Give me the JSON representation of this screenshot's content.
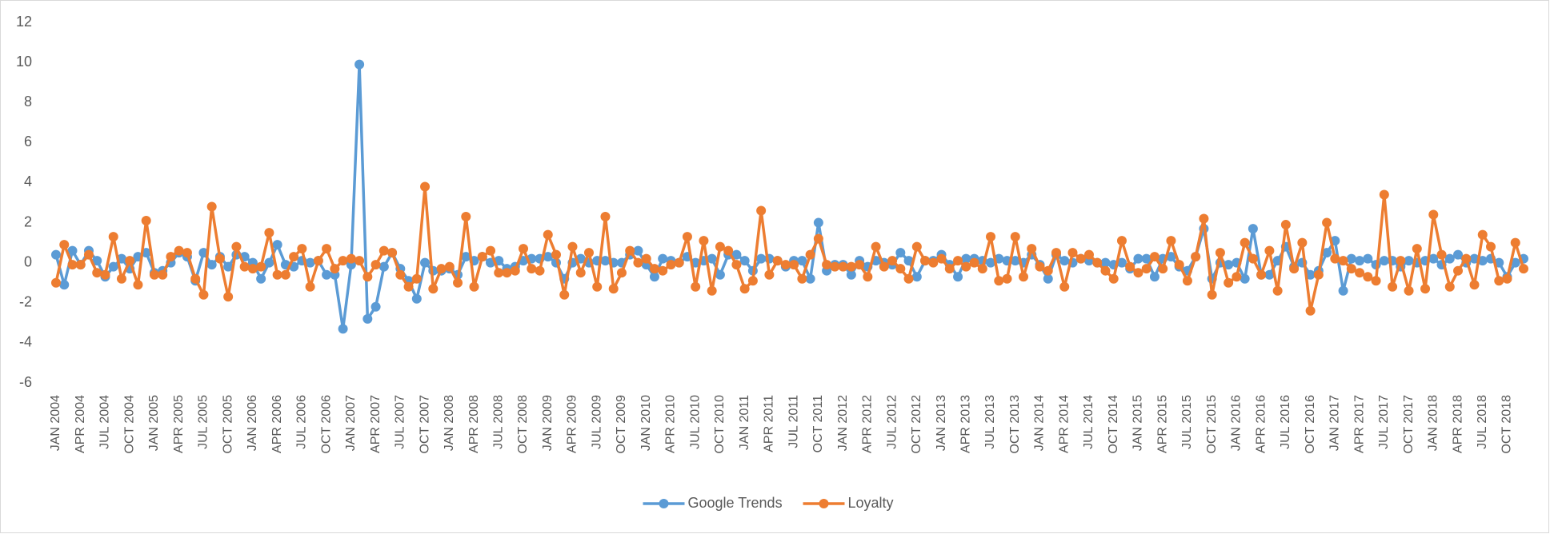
{
  "chart_data": {
    "type": "line",
    "categories": [
      "JAN 2004",
      null,
      null,
      "APR 2004",
      null,
      null,
      "JUL 2004",
      null,
      null,
      "OCT 2004",
      null,
      null,
      "JAN 2005",
      null,
      null,
      "APR 2005",
      null,
      null,
      "JUL 2005",
      null,
      null,
      "OCT 2005",
      null,
      null,
      "JAN 2006",
      null,
      null,
      "APR 2006",
      null,
      null,
      "JUL 2006",
      null,
      null,
      "OCT 2006",
      null,
      null,
      "JAN 2007",
      null,
      null,
      "APR 2007",
      null,
      null,
      "JUL 2007",
      null,
      null,
      "OCT 2007",
      null,
      null,
      "JAN 2008",
      null,
      null,
      "APR 2008",
      null,
      null,
      "JUL 2008",
      null,
      null,
      "OCT 2008",
      null,
      null,
      "JAN 2009",
      null,
      null,
      "APR 2009",
      null,
      null,
      "JUL 2009",
      null,
      null,
      "OCT 2009",
      null,
      null,
      "JAN 2010",
      null,
      null,
      "APR 2010",
      null,
      null,
      "JUL 2010",
      null,
      null,
      "OCT 2010",
      null,
      null,
      "JAN 2011",
      null,
      null,
      "APR 2011",
      null,
      null,
      "JUL 2011",
      null,
      null,
      "OCT 2011",
      null,
      null,
      "JAN 2012",
      null,
      null,
      "APR 2012",
      null,
      null,
      "JUL 2012",
      null,
      null,
      "OCT 2012",
      null,
      null,
      "JAN 2013",
      null,
      null,
      "APR 2013",
      null,
      null,
      "JUL 2013",
      null,
      null,
      "OCT 2013",
      null,
      null,
      "JAN 2014",
      null,
      null,
      "APR 2014",
      null,
      null,
      "JUL 2014",
      null,
      null,
      "OCT 2014",
      null,
      null,
      "JAN 2015",
      null,
      null,
      "APR 2015",
      null,
      null,
      "JUL 2015",
      null,
      null,
      "OCT 2015",
      null,
      null,
      "JAN 2016",
      null,
      null,
      "APR 2016",
      null,
      null,
      "JUL 2016",
      null,
      null,
      "OCT 2016",
      null,
      null,
      "JAN 2017",
      null,
      null,
      "APR 2017",
      null,
      null,
      "JUL 2017",
      null,
      null,
      "OCT 2017",
      null,
      null,
      "JAN 2018",
      null,
      null,
      "APR 2018",
      null,
      null,
      "JUL 2018",
      null,
      null,
      "OCT 2018",
      null,
      null
    ],
    "series": [
      {
        "name": "Google Trends",
        "color": "#5b9bd5",
        "values": [
          0.4,
          -1.1,
          0.6,
          -0.1,
          0.6,
          0.1,
          -0.7,
          -0.2,
          0.2,
          -0.3,
          0.3,
          0.5,
          -0.5,
          -0.4,
          0.0,
          0.5,
          0.3,
          -0.9,
          0.5,
          -0.1,
          0.3,
          -0.2,
          0.4,
          0.3,
          0.0,
          -0.8,
          0.0,
          0.9,
          -0.1,
          -0.2,
          0.1,
          0.0,
          0.1,
          -0.6,
          -0.6,
          -3.3,
          -0.1,
          9.9,
          -2.8,
          -2.2,
          -0.2,
          0.5,
          -0.3,
          -0.9,
          -1.8,
          0.0,
          -0.4,
          -0.4,
          -0.3,
          -0.6,
          0.3,
          0.1,
          0.3,
          0.0,
          0.1,
          -0.3,
          -0.2,
          0.1,
          0.2,
          0.2,
          0.3,
          0.0,
          -0.8,
          0.0,
          0.2,
          0.0,
          0.1,
          0.1,
          0.0,
          0.0,
          0.4,
          0.6,
          -0.1,
          -0.7,
          0.2,
          0.1,
          0.0,
          0.3,
          0.0,
          0.1,
          0.2,
          -0.6,
          0.4,
          0.4,
          0.1,
          -0.4,
          0.2,
          0.2,
          0.1,
          -0.2,
          0.1,
          0.1,
          -0.8,
          2.0,
          -0.4,
          -0.1,
          -0.1,
          -0.6,
          0.1,
          -0.2,
          0.1,
          0.0,
          -0.1,
          0.5,
          0.1,
          -0.7,
          0.1,
          0.1,
          0.4,
          -0.1,
          -0.7,
          0.2,
          0.2,
          0.1,
          0.0,
          0.2,
          0.1,
          0.1,
          0.0,
          0.4,
          -0.1,
          -0.8,
          0.4,
          0.1,
          0.0,
          0.2,
          0.1,
          0.0,
          0.0,
          -0.1,
          0.0,
          -0.3,
          0.2,
          0.2,
          -0.7,
          0.2,
          0.3,
          -0.2,
          -0.4,
          0.3,
          1.7,
          -0.8,
          0.0,
          -0.1,
          0.0,
          -0.8,
          1.7,
          -0.6,
          -0.6,
          0.1,
          0.8,
          -0.2,
          0.0,
          -0.6,
          -0.4,
          0.5,
          1.1,
          -1.4,
          0.2,
          0.1,
          0.2,
          -0.1,
          0.1,
          0.1,
          -0.2,
          0.1,
          0.0,
          0.1,
          0.2,
          -0.1,
          0.2,
          0.4,
          0.0,
          0.2,
          0.1,
          0.2,
          0.0,
          -0.7,
          0.0,
          0.2
        ]
      },
      {
        "name": "Loyalty",
        "color": "#ed7d31",
        "values": [
          -1.0,
          0.9,
          -0.1,
          -0.1,
          0.4,
          -0.5,
          -0.6,
          1.3,
          -0.8,
          0.1,
          -1.1,
          2.1,
          -0.6,
          -0.6,
          0.3,
          0.6,
          0.5,
          -0.8,
          -1.6,
          2.8,
          0.2,
          -1.7,
          0.8,
          -0.2,
          -0.3,
          -0.2,
          1.5,
          -0.6,
          -0.6,
          0.3,
          0.7,
          -1.2,
          0.1,
          0.7,
          -0.3,
          0.1,
          0.2,
          0.1,
          -0.7,
          -0.1,
          0.6,
          0.5,
          -0.6,
          -1.2,
          -0.8,
          3.8,
          -1.3,
          -0.3,
          -0.2,
          -1.0,
          2.3,
          -1.2,
          0.3,
          0.6,
          -0.5,
          -0.5,
          -0.4,
          0.7,
          -0.3,
          -0.4,
          1.4,
          0.4,
          -1.6,
          0.8,
          -0.5,
          0.5,
          -1.2,
          2.3,
          -1.3,
          -0.5,
          0.6,
          0.0,
          0.2,
          -0.3,
          -0.4,
          -0.1,
          0.0,
          1.3,
          -1.2,
          1.1,
          -1.4,
          0.8,
          0.6,
          -0.1,
          -1.3,
          -0.9,
          2.6,
          -0.6,
          0.1,
          -0.1,
          -0.1,
          -0.8,
          0.4,
          1.2,
          -0.1,
          -0.2,
          -0.2,
          -0.2,
          -0.1,
          -0.7,
          0.8,
          -0.2,
          0.1,
          -0.3,
          -0.8,
          0.8,
          0.1,
          0.0,
          0.2,
          -0.3,
          0.1,
          -0.2,
          0.0,
          -0.3,
          1.3,
          -0.9,
          -0.8,
          1.3,
          -0.7,
          0.7,
          -0.2,
          -0.4,
          0.5,
          -1.2,
          0.5,
          0.2,
          0.4,
          0.0,
          -0.4,
          -0.8,
          1.1,
          -0.2,
          -0.5,
          -0.3,
          0.3,
          -0.3,
          1.1,
          -0.1,
          -0.9,
          0.3,
          2.2,
          -1.6,
          0.5,
          -1.0,
          -0.7,
          1.0,
          0.2,
          -0.6,
          0.6,
          -1.4,
          1.9,
          -0.3,
          1.0,
          -2.4,
          -0.6,
          2.0,
          0.2,
          0.1,
          -0.3,
          -0.5,
          -0.7,
          -0.9,
          3.4,
          -1.2,
          0.1,
          -1.4,
          0.7,
          -1.3,
          2.4,
          0.4,
          -1.2,
          -0.4,
          0.2,
          -1.1,
          1.4,
          0.8,
          -0.9,
          -0.8,
          1.0,
          -0.3
        ]
      }
    ],
    "ylim": [
      -6,
      12
    ],
    "yticks": [
      -6,
      -4,
      -2,
      0,
      2,
      4,
      6,
      8,
      10,
      12
    ],
    "legend": "bottom"
  }
}
